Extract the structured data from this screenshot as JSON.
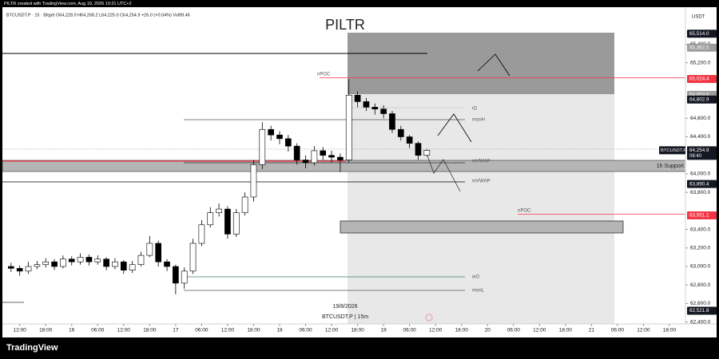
{
  "header_text": "PILTR created with TradingView.com, Aug 19, 2026 10:21 UTC+2",
  "legend_text": "BTCUSDT.P · 15 · Bitget  O64,228.9 H64,268.2 L64,225.0 C64,254.9 +26.0 (+0.04%) Vol99.46",
  "currency": "USDT",
  "logo": "TradingView",
  "chart_data": {
    "type": "candlestick",
    "title": "PILTR",
    "x": [
      10,
      12,
      14,
      16,
      18,
      20,
      22,
      24,
      26,
      28,
      30,
      32,
      34,
      36,
      38,
      40,
      42,
      44,
      46,
      48,
      50,
      52,
      54,
      56,
      58,
      60,
      62,
      64,
      66,
      68,
      70,
      72,
      74,
      76,
      78,
      80,
      82,
      84,
      86,
      88,
      90,
      92,
      94,
      96,
      98,
      100,
      102,
      104,
      106
    ],
    "open": [
      63000,
      62980,
      62950,
      63000,
      63020,
      63050,
      63000,
      63080,
      63050,
      63100,
      63050,
      63080,
      63000,
      63050,
      62960,
      63020,
      63120,
      63250,
      63050,
      63000,
      62820,
      62950,
      63250,
      63450,
      63580,
      63620,
      63350,
      63580,
      63750,
      64100,
      64480,
      64420,
      64380,
      64300,
      64150,
      64120,
      64250,
      64200,
      64180,
      64150,
      64850,
      64780,
      64720,
      64700,
      64650,
      64480,
      64400,
      64330,
      64200
    ],
    "high": [
      63040,
      63010,
      63050,
      63060,
      63090,
      63080,
      63120,
      63110,
      63140,
      63130,
      63120,
      63100,
      63090,
      63070,
      63060,
      63160,
      63330,
      63280,
      63080,
      63020,
      62990,
      63300,
      63500,
      63640,
      63680,
      63650,
      63620,
      63800,
      64150,
      64560,
      64520,
      64460,
      64420,
      64330,
      64200,
      64300,
      64290,
      64250,
      64220,
      65024,
      64890,
      64820,
      64760,
      64740,
      64680,
      64520,
      64420,
      64350,
      64268
    ],
    "low": [
      62940,
      62900,
      62920,
      62970,
      62990,
      62960,
      62980,
      63010,
      63020,
      63010,
      63020,
      62960,
      62970,
      62920,
      62930,
      63000,
      63100,
      63000,
      62950,
      62700,
      62760,
      62920,
      63220,
      63420,
      63540,
      63300,
      63320,
      63550,
      63700,
      64050,
      64360,
      64320,
      64240,
      64100,
      64060,
      64090,
      64150,
      64120,
      64020,
      64120,
      64720,
      64680,
      64640,
      64600,
      64440,
      64360,
      64280,
      64150,
      64190
    ],
    "close": [
      62980,
      62950,
      63000,
      63020,
      63050,
      63000,
      63080,
      63050,
      63100,
      63050,
      63080,
      63000,
      63050,
      62960,
      63020,
      63120,
      63250,
      63050,
      63000,
      62820,
      62950,
      63250,
      63450,
      63580,
      63620,
      63350,
      63580,
      63750,
      64100,
      64480,
      64420,
      64380,
      64300,
      64150,
      64120,
      64250,
      64200,
      64180,
      64150,
      64850,
      64780,
      64720,
      64700,
      64650,
      64480,
      64400,
      64330,
      64200,
      64255
    ],
    "up_color": "#ffffff",
    "down_color": "#000000",
    "wick_color": "#000000",
    "xlim": [
      8,
      165.7
    ],
    "ylim": [
      62380,
      65800
    ],
    "xticks": [
      {
        "value": 12,
        "label": "12:00"
      },
      {
        "value": 18,
        "label": "18:00"
      },
      {
        "value": 24,
        "label": "16"
      },
      {
        "value": 30,
        "label": "06:00"
      },
      {
        "value": 36,
        "label": "12:00"
      },
      {
        "value": 42,
        "label": "18:00"
      },
      {
        "value": 48,
        "label": "17"
      },
      {
        "value": 54,
        "label": "06:00"
      },
      {
        "value": 60,
        "label": "12:00"
      },
      {
        "value": 66,
        "label": "18:00"
      },
      {
        "value": 72,
        "label": "18"
      },
      {
        "value": 78,
        "label": "06:00"
      },
      {
        "value": 84,
        "label": "12:00"
      },
      {
        "value": 90,
        "label": "18:00"
      },
      {
        "value": 96,
        "label": "19"
      },
      {
        "value": 102,
        "label": "06:00"
      },
      {
        "value": 108,
        "label": "12:00"
      },
      {
        "value": 114,
        "label": "18:00"
      },
      {
        "value": 120,
        "label": "20"
      },
      {
        "value": 126,
        "label": "06:00"
      },
      {
        "value": 132,
        "label": "12:00"
      },
      {
        "value": 138,
        "label": "18:00"
      },
      {
        "value": 144,
        "label": "21"
      },
      {
        "value": 150,
        "label": "06:00"
      },
      {
        "value": 156,
        "label": "12:00"
      },
      {
        "value": 162,
        "label": "18:00"
      }
    ],
    "yticks": [
      {
        "value": 65400,
        "label": "65,400.0"
      },
      {
        "value": 65200,
        "label": "65,200.0"
      },
      {
        "value": 64600,
        "label": "64,600.0"
      },
      {
        "value": 64400,
        "label": "64,400.0"
      },
      {
        "value": 64000,
        "label": "64,000.0"
      },
      {
        "value": 63800,
        "label": "63,800.0"
      },
      {
        "value": 63400,
        "label": "63,400.0"
      },
      {
        "value": 63200,
        "label": "63,200.0"
      },
      {
        "value": 63000,
        "label": "63,000.0"
      },
      {
        "value": 62800,
        "label": "62,800.0"
      },
      {
        "value": 62600,
        "label": "62,600.0"
      },
      {
        "value": 62400,
        "label": "62,400.0"
      }
    ],
    "price_labels": [
      {
        "value": 65514,
        "label": "65,514.0",
        "color": "#131722"
      },
      {
        "value": 65362.5,
        "label": "65,362.5",
        "color": "#9e9e9e"
      },
      {
        "value": 65024.4,
        "label": "65,024.4",
        "color": "#f23645"
      },
      {
        "value": 64853.6,
        "label": "64,853.6",
        "color": "#9e9e9e"
      },
      {
        "value": 64802.9,
        "label": "64,802.9",
        "color": "#131722"
      },
      {
        "value": 63890.4,
        "label": "63,890.4",
        "color": "#131722"
      },
      {
        "value": 63551.1,
        "label": "63,551.1",
        "color": "#f23645"
      },
      {
        "value": 62521.8,
        "label": "62,521.8",
        "color": "#131722"
      }
    ],
    "current_price": {
      "value": 64254.9,
      "label": "64,254.9",
      "symbol": "BTCUSDT.P",
      "countdown": "08:40"
    },
    "annotations": [
      "nPOC",
      "rD",
      "monH",
      "mVWAP",
      "mVWAP",
      "nPOC",
      "wO",
      "monL",
      "1h Support",
      "19/8/2026",
      "BTCUSDT.P | 15m"
    ]
  }
}
